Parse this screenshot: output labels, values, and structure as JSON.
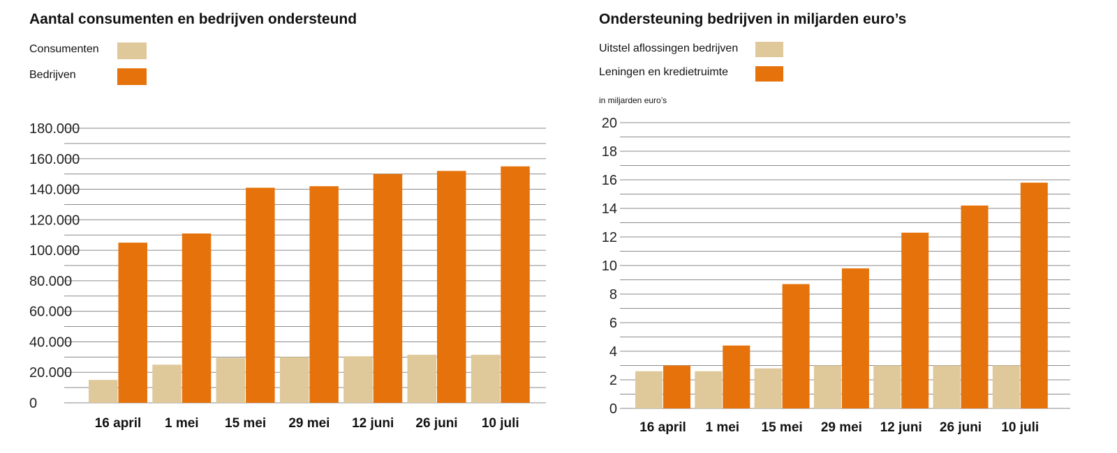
{
  "colors": {
    "light": "#dfc899",
    "dark": "#e5720a",
    "grid": "#8a8a8a"
  },
  "chart_data": [
    {
      "type": "bar",
      "title": "Aantal consumenten en bedrijven ondersteund",
      "categories": [
        "16 april",
        "1 mei",
        "15 mei",
        "29 mei",
        "12 juni",
        "26 juni",
        "10 juli"
      ],
      "series": [
        {
          "name": "Consumenten",
          "values": [
            15000,
            25000,
            29500,
            30000,
            30500,
            31500,
            31500
          ]
        },
        {
          "name": "Bedrijven",
          "values": [
            105000,
            111000,
            141000,
            142000,
            150000,
            152000,
            155000
          ]
        }
      ],
      "ylim": [
        0,
        180000
      ],
      "yticks": [
        "0",
        "20.000",
        "40.000",
        "60.000",
        "80.000",
        "100.000",
        "120.000",
        "140.000",
        "160.000",
        "180.000"
      ],
      "minor_step": 10000,
      "legend": "top-left",
      "grid": true
    },
    {
      "type": "bar",
      "title": "Ondersteuning bedrijven in miljarden euro’s",
      "unit_label": "in miljarden euro’s",
      "categories": [
        "16 april",
        "1 mei",
        "15 mei",
        "29 mei",
        "12 juni",
        "26 juni",
        "10 juli"
      ],
      "series": [
        {
          "name": "Uitstel aflossingen bedrijven",
          "values": [
            2.6,
            2.6,
            2.8,
            3.0,
            3.0,
            3.0,
            3.0
          ]
        },
        {
          "name": "Leningen en kredietruimte",
          "values": [
            3.0,
            4.4,
            8.7,
            9.8,
            12.3,
            14.2,
            15.8
          ]
        }
      ],
      "ylim": [
        0,
        20
      ],
      "yticks": [
        "0",
        "2",
        "4",
        "6",
        "8",
        "10",
        "12",
        "14",
        "16",
        "18",
        "20"
      ],
      "minor_step": 1,
      "legend": "top-left",
      "grid": true
    }
  ]
}
